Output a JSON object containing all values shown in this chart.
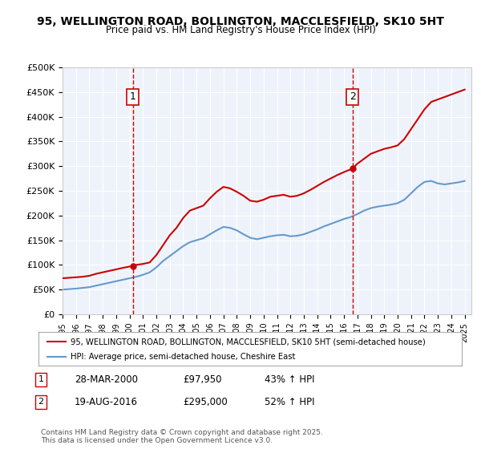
{
  "title": "95, WELLINGTON ROAD, BOLLINGTON, MACCLESFIELD, SK10 5HT",
  "subtitle": "Price paid vs. HM Land Registry's House Price Index (HPI)",
  "xlabel": "",
  "ylabel": "",
  "ylim": [
    0,
    500000
  ],
  "yticks": [
    0,
    50000,
    100000,
    150000,
    200000,
    250000,
    300000,
    350000,
    400000,
    450000,
    500000
  ],
  "ytick_labels": [
    "£0",
    "£50K",
    "£100K",
    "£150K",
    "£200K",
    "£250K",
    "£300K",
    "£350K",
    "£400K",
    "£450K",
    "£500K"
  ],
  "xlim_start": 1995.0,
  "xlim_end": 2025.5,
  "background_color": "#eef3fb",
  "plot_bg_color": "#eef3fb",
  "outer_bg_color": "#ffffff",
  "red_line_color": "#cc0000",
  "blue_line_color": "#6699cc",
  "vline_color": "#cc0000",
  "marker1_x": 2000.24,
  "marker1_y": 97950,
  "marker2_x": 2016.63,
  "marker2_y": 295000,
  "legend_label_red": "95, WELLINGTON ROAD, BOLLINGTON, MACCLESFIELD, SK10 5HT (semi-detached house)",
  "legend_label_blue": "HPI: Average price, semi-detached house, Cheshire East",
  "annotation1_box": "1",
  "annotation2_box": "2",
  "note1_date": "28-MAR-2000",
  "note1_price": "£97,950",
  "note1_hpi": "43% ↑ HPI",
  "note2_date": "19-AUG-2016",
  "note2_price": "£295,000",
  "note2_hpi": "52% ↑ HPI",
  "footer": "Contains HM Land Registry data © Crown copyright and database right 2025.\nThis data is licensed under the Open Government Licence v3.0.",
  "red_x": [
    1995.0,
    1995.5,
    1996.0,
    1996.5,
    1997.0,
    1997.5,
    1998.0,
    1998.5,
    1999.0,
    1999.5,
    2000.24,
    2000.5,
    2001.0,
    2001.5,
    2002.0,
    2002.5,
    2003.0,
    2003.5,
    2004.0,
    2004.5,
    2005.0,
    2005.5,
    2006.0,
    2006.5,
    2007.0,
    2007.5,
    2008.0,
    2008.5,
    2009.0,
    2009.5,
    2010.0,
    2010.5,
    2011.0,
    2011.5,
    2012.0,
    2012.5,
    2013.0,
    2013.5,
    2014.0,
    2014.5,
    2015.0,
    2015.5,
    2016.0,
    2016.63,
    2017.0,
    2017.5,
    2018.0,
    2018.5,
    2019.0,
    2019.5,
    2020.0,
    2020.5,
    2021.0,
    2021.5,
    2022.0,
    2022.5,
    2023.0,
    2023.5,
    2024.0,
    2024.5,
    2025.0
  ],
  "red_y": [
    73000,
    74000,
    75000,
    76000,
    78000,
    82000,
    85000,
    88000,
    91000,
    94000,
    97950,
    100000,
    102000,
    105000,
    120000,
    140000,
    160000,
    175000,
    195000,
    210000,
    215000,
    220000,
    235000,
    248000,
    258000,
    255000,
    248000,
    240000,
    230000,
    228000,
    232000,
    238000,
    240000,
    242000,
    238000,
    240000,
    245000,
    252000,
    260000,
    268000,
    275000,
    282000,
    288000,
    295000,
    305000,
    315000,
    325000,
    330000,
    335000,
    338000,
    342000,
    355000,
    375000,
    395000,
    415000,
    430000,
    435000,
    440000,
    445000,
    450000,
    455000
  ],
  "blue_x": [
    1995.0,
    1995.5,
    1996.0,
    1996.5,
    1997.0,
    1997.5,
    1998.0,
    1998.5,
    1999.0,
    1999.5,
    2000.0,
    2000.5,
    2001.0,
    2001.5,
    2002.0,
    2002.5,
    2003.0,
    2003.5,
    2004.0,
    2004.5,
    2005.0,
    2005.5,
    2006.0,
    2006.5,
    2007.0,
    2007.5,
    2008.0,
    2008.5,
    2009.0,
    2009.5,
    2010.0,
    2010.5,
    2011.0,
    2011.5,
    2012.0,
    2012.5,
    2013.0,
    2013.5,
    2014.0,
    2014.5,
    2015.0,
    2015.5,
    2016.0,
    2016.5,
    2017.0,
    2017.5,
    2018.0,
    2018.5,
    2019.0,
    2019.5,
    2020.0,
    2020.5,
    2021.0,
    2021.5,
    2022.0,
    2022.5,
    2023.0,
    2023.5,
    2024.0,
    2024.5,
    2025.0
  ],
  "blue_y": [
    50000,
    51000,
    52000,
    53500,
    55000,
    58000,
    61000,
    64000,
    67000,
    70000,
    73000,
    76000,
    80000,
    85000,
    95000,
    108000,
    118000,
    128000,
    138000,
    146000,
    150000,
    154000,
    162000,
    170000,
    177000,
    175000,
    170000,
    162000,
    155000,
    152000,
    155000,
    158000,
    160000,
    161000,
    158000,
    159000,
    162000,
    167000,
    172000,
    178000,
    183000,
    188000,
    193000,
    197000,
    203000,
    210000,
    215000,
    218000,
    220000,
    222000,
    225000,
    232000,
    245000,
    258000,
    268000,
    270000,
    265000,
    263000,
    265000,
    267000,
    270000
  ]
}
